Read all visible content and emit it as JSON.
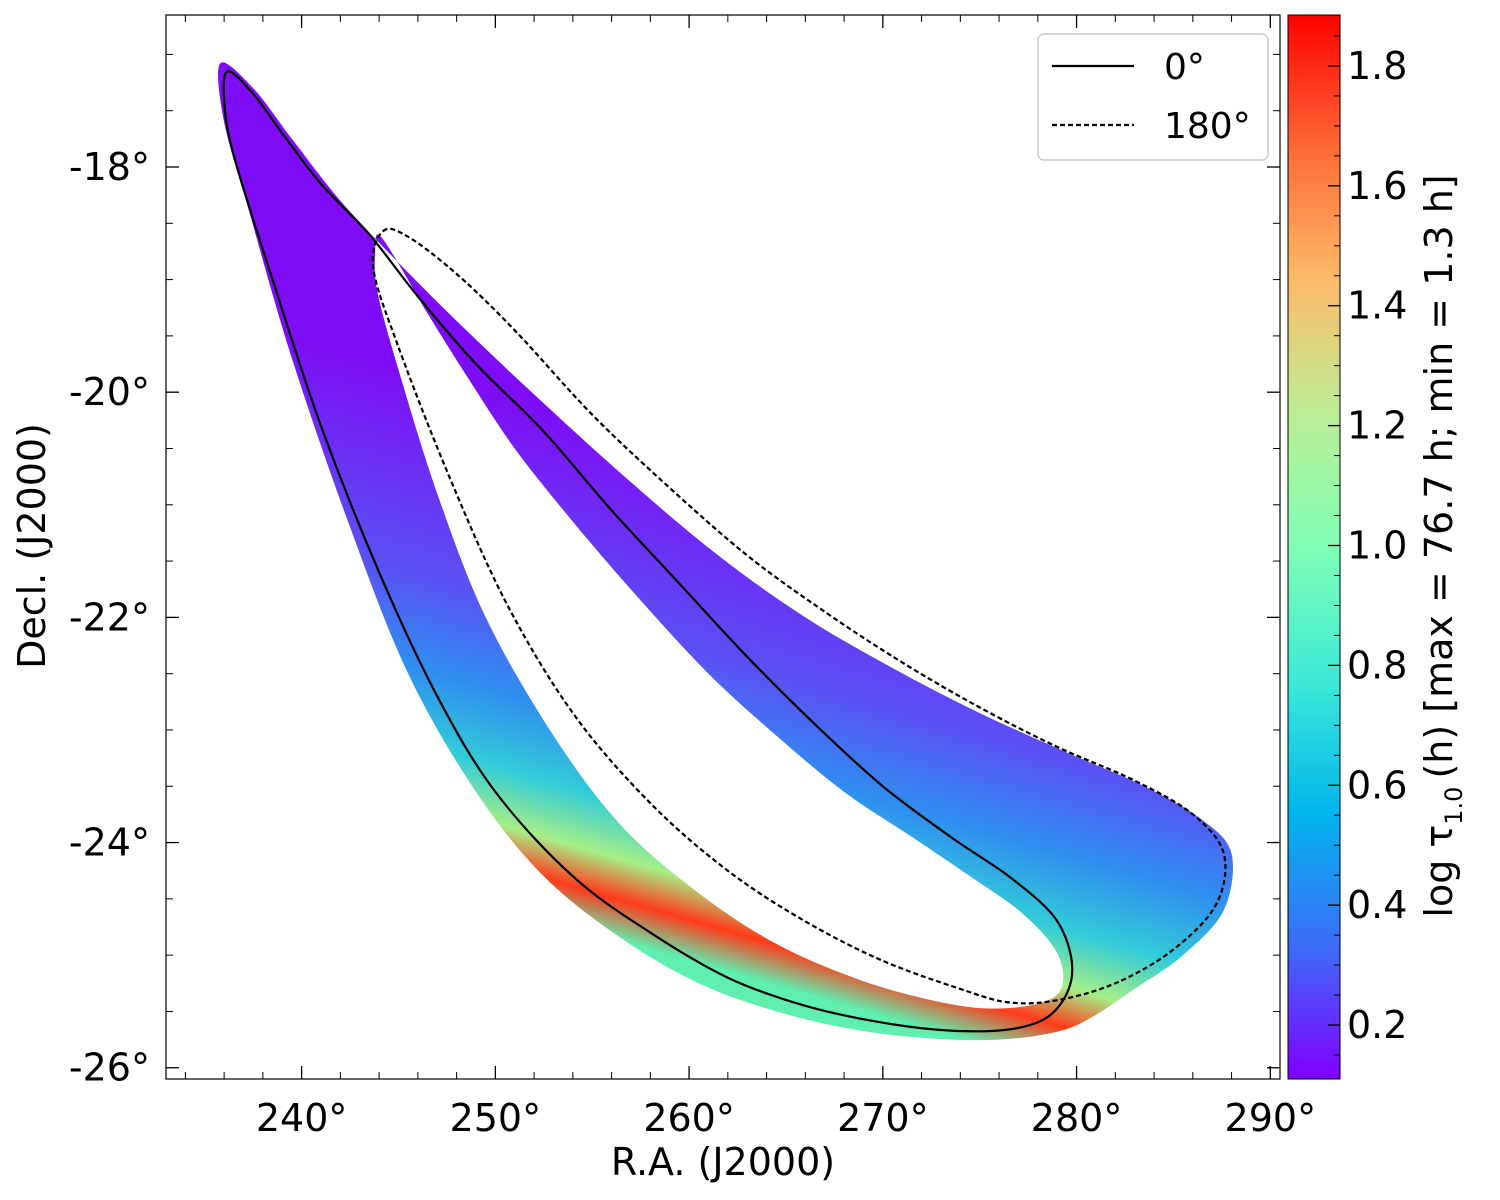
{
  "chart_data": {
    "type": "scatter",
    "title": "",
    "xlabel": "R.A. (J2000)",
    "ylabel": "Decl. (J2000)",
    "xlim": [
      233,
      290.5
    ],
    "ylim": [
      -26.1,
      -16.65
    ],
    "x_ticks": [
      {
        "value": 240,
        "label": "240°"
      },
      {
        "value": 250,
        "label": "250°"
      },
      {
        "value": 260,
        "label": "260°"
      },
      {
        "value": 270,
        "label": "270°"
      },
      {
        "value": 280,
        "label": "280°"
      },
      {
        "value": 290,
        "label": "290°"
      }
    ],
    "y_ticks": [
      {
        "value": -18,
        "label": "-18°"
      },
      {
        "value": -20,
        "label": "-20°"
      },
      {
        "value": -22,
        "label": "-22°"
      },
      {
        "value": -24,
        "label": "-24°"
      },
      {
        "value": -26,
        "label": "-26°"
      }
    ],
    "grid": false,
    "legend": {
      "placement": "top-right",
      "entries": [
        {
          "label": "0°",
          "style": "solid"
        },
        {
          "label": "180°",
          "style": "dashed"
        }
      ]
    },
    "series": [
      {
        "label": "0°",
        "style": "solid",
        "color": "#000000",
        "points": [
          [
            236.2,
            -17.15
          ],
          [
            237.5,
            -17.35
          ],
          [
            239.0,
            -17.7
          ],
          [
            241.0,
            -18.15
          ],
          [
            243.5,
            -18.6
          ],
          [
            246.0,
            -19.15
          ],
          [
            249.0,
            -19.75
          ],
          [
            252.5,
            -20.35
          ],
          [
            256.0,
            -21.05
          ],
          [
            259.5,
            -21.7
          ],
          [
            263.0,
            -22.35
          ],
          [
            266.5,
            -22.95
          ],
          [
            270.0,
            -23.5
          ],
          [
            273.5,
            -23.95
          ],
          [
            276.5,
            -24.3
          ],
          [
            278.8,
            -24.65
          ],
          [
            279.7,
            -25.0
          ],
          [
            279.6,
            -25.3
          ],
          [
            278.5,
            -25.55
          ],
          [
            276.5,
            -25.66
          ],
          [
            273.5,
            -25.67
          ],
          [
            270.0,
            -25.6
          ],
          [
            266.0,
            -25.45
          ],
          [
            262.0,
            -25.2
          ],
          [
            258.0,
            -24.8
          ],
          [
            254.0,
            -24.3
          ],
          [
            250.0,
            -23.55
          ],
          [
            247.0,
            -22.7
          ],
          [
            244.0,
            -21.6
          ],
          [
            241.0,
            -20.3
          ],
          [
            238.5,
            -19.0
          ],
          [
            236.5,
            -17.9
          ],
          [
            236.0,
            -17.4
          ],
          [
            236.2,
            -17.15
          ]
        ]
      },
      {
        "label": "180°",
        "style": "dashed",
        "color": "#000000",
        "points": [
          [
            244.2,
            -18.57
          ],
          [
            245.5,
            -18.62
          ],
          [
            248.0,
            -18.95
          ],
          [
            251.0,
            -19.45
          ],
          [
            255.0,
            -20.2
          ],
          [
            259.0,
            -20.85
          ],
          [
            263.0,
            -21.45
          ],
          [
            267.0,
            -21.95
          ],
          [
            271.0,
            -22.4
          ],
          [
            275.0,
            -22.8
          ],
          [
            279.0,
            -23.15
          ],
          [
            283.0,
            -23.45
          ],
          [
            286.0,
            -23.75
          ],
          [
            287.6,
            -24.1
          ],
          [
            287.2,
            -24.55
          ],
          [
            285.0,
            -24.95
          ],
          [
            282.0,
            -25.25
          ],
          [
            279.0,
            -25.4
          ],
          [
            276.5,
            -25.42
          ],
          [
            274.0,
            -25.3
          ],
          [
            270.0,
            -25.05
          ],
          [
            266.0,
            -24.7
          ],
          [
            262.0,
            -24.25
          ],
          [
            258.0,
            -23.65
          ],
          [
            254.0,
            -22.85
          ],
          [
            250.5,
            -21.85
          ],
          [
            247.5,
            -20.7
          ],
          [
            245.0,
            -19.6
          ],
          [
            243.7,
            -18.9
          ],
          [
            244.2,
            -18.57
          ]
        ]
      }
    ],
    "filled_region": {
      "quantity": "log τ_1.0 (h)",
      "outer_boundary": [
        [
          235.8,
          -17.08
        ],
        [
          237.5,
          -17.3
        ],
        [
          239.5,
          -17.75
        ],
        [
          242.0,
          -18.3
        ],
        [
          245.0,
          -18.85
        ],
        [
          248.5,
          -19.45
        ],
        [
          252.5,
          -20.1
        ],
        [
          257.0,
          -20.8
        ],
        [
          261.5,
          -21.45
        ],
        [
          266.0,
          -22.0
        ],
        [
          270.5,
          -22.45
        ],
        [
          275.0,
          -22.85
        ],
        [
          279.5,
          -23.2
        ],
        [
          283.5,
          -23.5
        ],
        [
          286.5,
          -23.8
        ],
        [
          288.0,
          -24.1
        ],
        [
          287.6,
          -24.6
        ],
        [
          285.5,
          -25.0
        ],
        [
          283.0,
          -25.3
        ],
        [
          280.8,
          -25.55
        ],
        [
          279.0,
          -25.68
        ],
        [
          276.0,
          -25.75
        ],
        [
          272.5,
          -25.74
        ],
        [
          268.5,
          -25.66
        ],
        [
          264.5,
          -25.5
        ],
        [
          260.5,
          -25.25
        ],
        [
          256.5,
          -24.85
        ],
        [
          252.5,
          -24.3
        ],
        [
          249.0,
          -23.55
        ],
        [
          245.5,
          -22.5
        ],
        [
          242.5,
          -21.2
        ],
        [
          239.5,
          -19.7
        ],
        [
          237.3,
          -18.4
        ],
        [
          236.0,
          -17.6
        ],
        [
          235.8,
          -17.08
        ]
      ],
      "inner_hole": [
        [
          243.95,
          -18.6
        ],
        [
          244.8,
          -18.8
        ],
        [
          246.5,
          -19.3
        ],
        [
          248.5,
          -19.85
        ],
        [
          251.0,
          -20.5
        ],
        [
          254.0,
          -21.15
        ],
        [
          257.5,
          -21.85
        ],
        [
          261.0,
          -22.5
        ],
        [
          264.5,
          -23.05
        ],
        [
          268.0,
          -23.55
        ],
        [
          271.5,
          -23.95
        ],
        [
          274.5,
          -24.3
        ],
        [
          277.0,
          -24.6
        ],
        [
          278.7,
          -24.9
        ],
        [
          279.3,
          -25.15
        ],
        [
          279.0,
          -25.35
        ],
        [
          277.5,
          -25.45
        ],
        [
          275.0,
          -25.47
        ],
        [
          272.0,
          -25.38
        ],
        [
          268.5,
          -25.2
        ],
        [
          264.5,
          -24.9
        ],
        [
          260.5,
          -24.45
        ],
        [
          256.5,
          -23.85
        ],
        [
          253.0,
          -23.05
        ],
        [
          249.5,
          -22.0
        ],
        [
          247.0,
          -20.9
        ],
        [
          245.0,
          -19.8
        ],
        [
          243.9,
          -19.1
        ],
        [
          243.8,
          -18.75
        ],
        [
          243.95,
          -18.6
        ]
      ],
      "color_bands": [
        {
          "offset": 0.0,
          "color": "#5ff0b0"
        },
        {
          "offset": 0.08,
          "color": "#ff3a1a"
        },
        {
          "offset": 0.16,
          "color": "#a6ee86"
        },
        {
          "offset": 0.27,
          "color": "#33ccd8"
        },
        {
          "offset": 0.42,
          "color": "#2f8ef0"
        },
        {
          "offset": 0.6,
          "color": "#5a52f4"
        },
        {
          "offset": 1.0,
          "color": "#7e0cf4"
        }
      ]
    },
    "colorbar": {
      "label": "log τ_1.0 (h) [max = 76.7 h; min = 1.3 h]",
      "label_pre": "log τ",
      "label_sub": "1.0",
      "label_post": "(h) [max = 76.7 h; min = 1.3 h]",
      "range": [
        0.11,
        1.885
      ],
      "ticks": [
        {
          "value": 0.2,
          "label": "0.2"
        },
        {
          "value": 0.4,
          "label": "0.4"
        },
        {
          "value": 0.6,
          "label": "0.6"
        },
        {
          "value": 0.8,
          "label": "0.8"
        },
        {
          "value": 1.0,
          "label": "1.0"
        },
        {
          "value": 1.2,
          "label": "1.2"
        },
        {
          "value": 1.4,
          "label": "1.4"
        },
        {
          "value": 1.6,
          "label": "1.6"
        },
        {
          "value": 1.8,
          "label": "1.8"
        }
      ],
      "colormap": "rainbow",
      "stops": [
        {
          "value": 0.11,
          "color": "#8000ff"
        },
        {
          "value": 0.33,
          "color": "#3d6cf7"
        },
        {
          "value": 0.55,
          "color": "#01b4ec"
        },
        {
          "value": 0.77,
          "color": "#3ce9d8"
        },
        {
          "value": 1.0,
          "color": "#80ffb4"
        },
        {
          "value": 1.22,
          "color": "#bcee95"
        },
        {
          "value": 1.44,
          "color": "#fcbb6a"
        },
        {
          "value": 1.66,
          "color": "#ff6b37"
        },
        {
          "value": 1.885,
          "color": "#ff0000"
        }
      ]
    }
  }
}
